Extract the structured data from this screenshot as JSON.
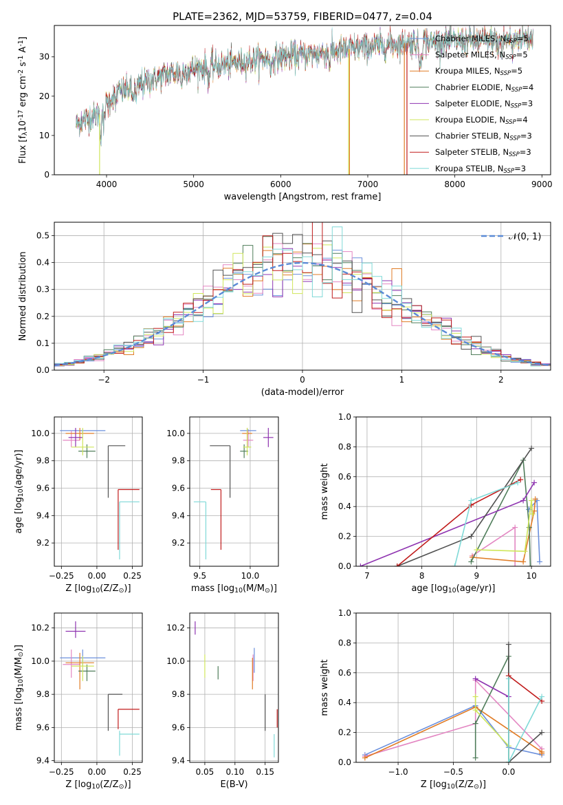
{
  "figure": {
    "title": "PLATE=2362, MJD=53759, FIBERID=0477, z=0.04"
  },
  "colors": {
    "Chabrier MILES": "#6a8fdc",
    "Salpeter MILES": "#e386c2",
    "Kroupa MILES": "#e07b24",
    "Chabrier ELODIE": "#4f7d5a",
    "Salpeter ELODIE": "#8e33b0",
    "Kroupa ELODIE": "#cfe65a",
    "Chabrier STELIB": "#505050",
    "Salpeter STELIB": "#c01a1a",
    "Kroupa STELIB": "#7fd9d7",
    "gauss": "#5b8ad6"
  },
  "chart_data": [
    {
      "id": "spectrum",
      "type": "line",
      "xlabel": "wavelength [Angstrom, rest frame]",
      "ylabel": "Flux [f$_\\lambda$10$^{-17}$ erg cm$^{-2}$ s$^{-1}$ A$^{-1}$]",
      "xlim": [
        3400,
        9100
      ],
      "ylim": [
        0,
        38
      ],
      "xticks": [
        4000,
        5000,
        6000,
        7000,
        8000,
        9000
      ],
      "yticks": [
        0,
        10,
        20,
        30
      ],
      "legend_loc": "upper right",
      "legend": [
        {
          "series": "Chabrier MILES",
          "label": "Chabrier MILES, N",
          "sub": "SSP",
          "suffix": "=5"
        },
        {
          "series": "Salpeter MILES",
          "label": "Salpeter MILES, N",
          "sub": "SSP",
          "suffix": "=5"
        },
        {
          "series": "Kroupa MILES",
          "label": "Kroupa MILES, N",
          "sub": "SSP",
          "suffix": "=5"
        },
        {
          "series": "Chabrier ELODIE",
          "label": "Chabrier ELODIE, N",
          "sub": "SSP",
          "suffix": "=4"
        },
        {
          "series": "Salpeter ELODIE",
          "label": "Salpeter ELODIE, N",
          "sub": "SSP",
          "suffix": "=3"
        },
        {
          "series": "Kroupa ELODIE",
          "label": "Kroupa ELODIE, N",
          "sub": "SSP",
          "suffix": "=4"
        },
        {
          "series": "Chabrier STELIB",
          "label": "Chabrier STELIB, N",
          "sub": "SSP",
          "suffix": "=3"
        },
        {
          "series": "Salpeter STELIB",
          "label": "Salpeter STELIB, N",
          "sub": "SSP",
          "suffix": "=3"
        },
        {
          "series": "Kroupa STELIB",
          "label": "Kroupa STELIB, N",
          "sub": "SSP",
          "suffix": "=3"
        }
      ],
      "continuum": {
        "x": [
          3650,
          3750,
          3850,
          3950,
          4000,
          4100,
          4300,
          4500,
          4700,
          5000,
          5200,
          5500,
          5800,
          6000,
          6300,
          6600,
          7000,
          7400,
          7800,
          8200,
          8600,
          8900
        ],
        "y": [
          13,
          14,
          15,
          15.5,
          18,
          21,
          22,
          24,
          25.5,
          27,
          27.5,
          28.5,
          29.5,
          30,
          30.5,
          31.5,
          32.5,
          33.5,
          34,
          34,
          34.5,
          35
        ]
      },
      "dropouts": [
        {
          "series": "Kroupa ELODIE",
          "x": 3920
        },
        {
          "series": "Kroupa ELODIE",
          "x": 6780
        },
        {
          "series": "Kroupa MILES",
          "x": 6790
        },
        {
          "series": "Kroupa MILES",
          "x": 7420
        },
        {
          "series": "Salpeter STELIB",
          "x": 7450
        }
      ]
    },
    {
      "id": "residual-histogram",
      "type": "line",
      "xlabel": "(data-model)/error",
      "ylabel": "Normed distribution",
      "xlim": [
        -2.5,
        2.5
      ],
      "ylim": [
        0,
        0.55
      ],
      "xticks": [
        -2,
        -1,
        0,
        1,
        2
      ],
      "yticks": [
        0.0,
        0.1,
        0.2,
        0.3,
        0.4,
        0.5
      ],
      "grid": true,
      "legend_loc": "upper right",
      "gauss_label": "𝒩(0, 1)",
      "bin_width": 0.1,
      "series_order": [
        "Chabrier MILES",
        "Salpeter MILES",
        "Kroupa MILES",
        "Chabrier ELODIE",
        "Salpeter ELODIE",
        "Kroupa ELODIE",
        "Chabrier STELIB",
        "Salpeter STELIB",
        "Kroupa STELIB"
      ]
    },
    {
      "id": "age-vs-Z",
      "type": "scatter",
      "xlabel": "Z [log$_{10}$(Z/Z$_\\odot$)]",
      "ylabel": "age  [log$_{10}$(age/yr)]",
      "xlim": [
        -0.3,
        0.32
      ],
      "ylim": [
        9.03,
        10.12
      ],
      "xticks": [
        -0.25,
        0.0,
        0.25
      ],
      "yticks": [
        9.2,
        9.4,
        9.6,
        9.8,
        10.0
      ],
      "grid": true,
      "points": [
        {
          "series": "Chabrier MILES",
          "x": -0.1,
          "y": 10.02,
          "xerr": [
            0.16,
            0.16
          ],
          "yerr": [
            0.03,
            0.01
          ]
        },
        {
          "series": "Salpeter MILES",
          "x": -0.18,
          "y": 9.95,
          "xerr": [
            0.06,
            0.06
          ],
          "yerr": [
            0.05,
            0.07
          ]
        },
        {
          "series": "Kroupa MILES",
          "x": -0.12,
          "y": 10.0,
          "xerr": [
            0.1,
            0.1
          ],
          "yerr": [
            0.05,
            0.04
          ]
        },
        {
          "series": "Chabrier ELODIE",
          "x": -0.07,
          "y": 9.87,
          "xerr": [
            0.06,
            0.06
          ],
          "yerr": [
            0.05,
            0.05
          ]
        },
        {
          "series": "Salpeter ELODIE",
          "x": -0.15,
          "y": 9.97,
          "xerr": [
            0.05,
            0.05
          ],
          "yerr": [
            0.07,
            0.07
          ]
        },
        {
          "series": "Kroupa ELODIE",
          "x": -0.1,
          "y": 9.9,
          "xerr": [
            0.08,
            0.08
          ],
          "yerr": [
            0.06,
            0.14
          ]
        },
        {
          "series": "Chabrier STELIB",
          "x": 0.08,
          "y": 9.91,
          "xerr": [
            0.0,
            0.12
          ],
          "yerr": [
            0.38,
            0.0
          ]
        },
        {
          "series": "Salpeter STELIB",
          "x": 0.15,
          "y": 9.59,
          "xerr": [
            0.0,
            0.15
          ],
          "yerr": [
            0.44,
            0.0
          ]
        },
        {
          "series": "Kroupa STELIB",
          "x": 0.16,
          "y": 9.5,
          "xerr": [
            0.0,
            0.14
          ],
          "yerr": [
            0.42,
            0.0
          ]
        }
      ]
    },
    {
      "id": "age-vs-mass",
      "type": "scatter",
      "xlabel": "mass [log$_{10}$(M/M$_\\odot$)]",
      "ylabel": "",
      "xlim": [
        9.4,
        10.28
      ],
      "ylim": [
        9.03,
        10.12
      ],
      "xticks": [
        9.5,
        10.0
      ],
      "yticks": [
        9.2,
        9.4,
        9.6,
        9.8,
        10.0
      ],
      "grid": true,
      "points": [
        {
          "series": "Chabrier MILES",
          "x": 9.98,
          "y": 10.02,
          "xerr": [
            0.08,
            0.08
          ],
          "yerr": [
            0.03,
            0.01
          ]
        },
        {
          "series": "Salpeter MILES",
          "x": 9.98,
          "y": 9.95,
          "xerr": [
            0.05,
            0.05
          ],
          "yerr": [
            0.05,
            0.07
          ]
        },
        {
          "series": "Kroupa MILES",
          "x": 9.97,
          "y": 10.0,
          "xerr": [
            0.05,
            0.05
          ],
          "yerr": [
            0.05,
            0.04
          ]
        },
        {
          "series": "Chabrier ELODIE",
          "x": 9.94,
          "y": 9.87,
          "xerr": [
            0.04,
            0.04
          ],
          "yerr": [
            0.05,
            0.05
          ]
        },
        {
          "series": "Salpeter ELODIE",
          "x": 10.18,
          "y": 9.97,
          "xerr": [
            0.05,
            0.05
          ],
          "yerr": [
            0.07,
            0.07
          ]
        },
        {
          "series": "Kroupa ELODIE",
          "x": 9.97,
          "y": 9.9,
          "xerr": [
            0.04,
            0.04
          ],
          "yerr": [
            0.06,
            0.14
          ]
        },
        {
          "series": "Chabrier STELIB",
          "x": 9.8,
          "y": 9.91,
          "xerr": [
            0.2,
            0.0
          ],
          "yerr": [
            0.38,
            0.0
          ]
        },
        {
          "series": "Salpeter STELIB",
          "x": 9.71,
          "y": 9.59,
          "xerr": [
            0.1,
            0.0
          ],
          "yerr": [
            0.44,
            0.0
          ]
        },
        {
          "series": "Kroupa STELIB",
          "x": 9.56,
          "y": 9.5,
          "xerr": [
            0.12,
            0.0
          ],
          "yerr": [
            0.42,
            0.0
          ]
        }
      ]
    },
    {
      "id": "massweight-vs-age",
      "type": "line",
      "xlabel": "age  [log$_{10}$(age/yr)]",
      "ylabel": "mass weight",
      "xlim": [
        6.8,
        10.35
      ],
      "ylim": [
        0,
        1.0
      ],
      "xticks": [
        7,
        8,
        9,
        10
      ],
      "yticks": [
        0.0,
        0.2,
        0.4,
        0.6,
        0.8,
        1.0
      ],
      "grid": true,
      "series": [
        {
          "name": "Chabrier MILES",
          "x": [
            9.95,
            10.1,
            10.15
          ],
          "y": [
            0.38,
            0.44,
            0.03
          ]
        },
        {
          "name": "Salpeter MILES",
          "x": [
            8.92,
            9.7,
            9.7
          ],
          "y": [
            0.07,
            0.26,
            0.0
          ]
        },
        {
          "name": "Kroupa MILES",
          "x": [
            8.92,
            9.85,
            10.05,
            10.07
          ],
          "y": [
            0.06,
            0.03,
            0.37,
            0.45
          ]
        },
        {
          "name": "Chabrier ELODIE",
          "x": [
            8.9,
            9.85,
            9.96,
            9.98
          ],
          "y": [
            0.03,
            0.71,
            0.26,
            0.0
          ]
        },
        {
          "name": "Salpeter ELODIE",
          "x": [
            6.88,
            9.85,
            10.05
          ],
          "y": [
            0.0,
            0.44,
            0.56
          ]
        },
        {
          "name": "Kroupa ELODIE",
          "x": [
            9.0,
            9.88,
            10.0,
            10.02
          ],
          "y": [
            0.11,
            0.1,
            0.44,
            0.35
          ]
        },
        {
          "name": "Chabrier STELIB",
          "x": [
            7.55,
            8.9,
            10.0
          ],
          "y": [
            0.0,
            0.2,
            0.79
          ]
        },
        {
          "name": "Salpeter STELIB",
          "x": [
            7.55,
            8.9,
            9.8
          ],
          "y": [
            0.0,
            0.41,
            0.58
          ]
        },
        {
          "name": "Kroupa STELIB",
          "x": [
            8.6,
            8.9,
            9.75
          ],
          "y": [
            0.0,
            0.44,
            0.56
          ]
        }
      ]
    },
    {
      "id": "mass-vs-Z",
      "type": "scatter",
      "xlabel": "Z [log$_{10}$(Z/Z$_\\odot$)]",
      "ylabel": "mass [log$_{10}$(M/M$_\\odot$)]",
      "xlim": [
        -0.3,
        0.32
      ],
      "ylim": [
        9.39,
        10.29
      ],
      "xticks": [
        -0.25,
        0.0,
        0.25
      ],
      "yticks": [
        9.4,
        9.6,
        9.8,
        10.0,
        10.2
      ],
      "grid": true,
      "points": [
        {
          "series": "Chabrier MILES",
          "x": -0.1,
          "y": 10.02,
          "xerr": [
            0.16,
            0.16
          ],
          "yerr": [
            0.05,
            0.05
          ]
        },
        {
          "series": "Salpeter MILES",
          "x": -0.18,
          "y": 9.98,
          "xerr": [
            0.06,
            0.06
          ],
          "yerr": [
            0.08,
            0.09
          ]
        },
        {
          "series": "Kroupa MILES",
          "x": -0.12,
          "y": 9.99,
          "xerr": [
            0.1,
            0.1
          ],
          "yerr": [
            0.16,
            0.06
          ]
        },
        {
          "series": "Chabrier ELODIE",
          "x": -0.07,
          "y": 9.94,
          "xerr": [
            0.06,
            0.06
          ],
          "yerr": [
            0.06,
            0.04
          ]
        },
        {
          "series": "Salpeter ELODIE",
          "x": -0.15,
          "y": 10.18,
          "xerr": [
            0.07,
            0.07
          ],
          "yerr": [
            0.04,
            0.06
          ]
        },
        {
          "series": "Kroupa ELODIE",
          "x": -0.1,
          "y": 9.97,
          "xerr": [
            0.08,
            0.08
          ],
          "yerr": [
            0.09,
            0.06
          ]
        },
        {
          "series": "Chabrier STELIB",
          "x": 0.08,
          "y": 9.8,
          "xerr": [
            0.0,
            0.1
          ],
          "yerr": [
            0.22,
            0.0
          ]
        },
        {
          "series": "Salpeter STELIB",
          "x": 0.15,
          "y": 9.71,
          "xerr": [
            0.0,
            0.15
          ],
          "yerr": [
            0.12,
            0.0
          ]
        },
        {
          "series": "Kroupa STELIB",
          "x": 0.16,
          "y": 9.56,
          "xerr": [
            0.0,
            0.14
          ],
          "yerr": [
            0.13,
            0.02
          ]
        }
      ]
    },
    {
      "id": "mass-vs-EBV",
      "type": "scatter",
      "xlabel": "E(B-V)",
      "ylabel": "",
      "xlim": [
        0.025,
        0.172
      ],
      "ylim": [
        9.39,
        10.29
      ],
      "xticks": [
        0.05,
        0.1,
        0.15
      ],
      "yticks": [
        9.4,
        9.6,
        9.8,
        10.0,
        10.2
      ],
      "grid": true,
      "points": [
        {
          "series": "Chabrier MILES",
          "x": 0.132,
          "y": 10.0,
          "xerr": [
            0,
            0
          ],
          "yerr": [
            0.07,
            0.08
          ]
        },
        {
          "series": "Salpeter MILES",
          "x": 0.13,
          "y": 9.98,
          "xerr": [
            0,
            0
          ],
          "yerr": [
            0.1,
            0.06
          ]
        },
        {
          "series": "Kroupa MILES",
          "x": 0.129,
          "y": 9.97,
          "xerr": [
            0,
            0
          ],
          "yerr": [
            0.14,
            0.05
          ]
        },
        {
          "series": "Chabrier ELODIE",
          "x": 0.072,
          "y": 9.94,
          "xerr": [
            0,
            0
          ],
          "yerr": [
            0.05,
            0.03
          ]
        },
        {
          "series": "Salpeter ELODIE",
          "x": 0.034,
          "y": 10.2,
          "xerr": [
            0,
            0
          ],
          "yerr": [
            0.04,
            0.04
          ]
        },
        {
          "series": "Kroupa ELODIE",
          "x": 0.05,
          "y": 9.98,
          "xerr": [
            0,
            0
          ],
          "yerr": [
            0.08,
            0.06
          ]
        },
        {
          "series": "Chabrier STELIB",
          "x": 0.15,
          "y": 9.8,
          "xerr": [
            0,
            0
          ],
          "yerr": [
            0.22,
            0.0
          ]
        },
        {
          "series": "Salpeter STELIB",
          "x": 0.17,
          "y": 9.65,
          "xerr": [
            0,
            0
          ],
          "yerr": [
            0.05,
            0.06
          ]
        },
        {
          "series": "Kroupa STELIB",
          "x": 0.165,
          "y": 9.52,
          "xerr": [
            0,
            0
          ],
          "yerr": [
            0.1,
            0.04
          ]
        }
      ]
    },
    {
      "id": "massweight-vs-Z",
      "type": "line",
      "xlabel": "Z [log$_{10}$(Z/Z$_\\odot$)]",
      "ylabel": "mass weight",
      "xlim": [
        -1.38,
        0.38
      ],
      "ylim": [
        0,
        1.0
      ],
      "xticks": [
        -1.0,
        -0.5,
        0.0
      ],
      "yticks": [
        0.0,
        0.2,
        0.4,
        0.6,
        0.8,
        1.0
      ],
      "grid": true,
      "series": [
        {
          "name": "Chabrier MILES",
          "x": [
            -1.3,
            -0.3,
            0.0,
            0.3
          ],
          "y": [
            0.05,
            0.38,
            0.1,
            0.05
          ]
        },
        {
          "name": "Salpeter MILES",
          "x": [
            -1.3,
            -0.3,
            -0.3,
            0.3
          ],
          "y": [
            0.04,
            0.26,
            0.55,
            0.09
          ]
        },
        {
          "name": "Kroupa MILES",
          "x": [
            -1.3,
            -0.3,
            0.3,
            0.3
          ],
          "y": [
            0.03,
            0.37,
            0.07,
            0.06
          ]
        },
        {
          "name": "Chabrier ELODIE",
          "x": [
            -0.3,
            -0.3,
            0.0,
            0.0
          ],
          "y": [
            0.03,
            0.26,
            0.71,
            0.0
          ]
        },
        {
          "name": "Salpeter ELODIE",
          "x": [
            -0.3,
            0.0
          ],
          "y": [
            0.56,
            0.44
          ]
        },
        {
          "name": "Kroupa ELODIE",
          "x": [
            -0.3,
            -0.3,
            0.0,
            0.0
          ],
          "y": [
            0.44,
            0.35,
            0.11,
            0.0
          ]
        },
        {
          "name": "Chabrier STELIB",
          "x": [
            0.0,
            0.0,
            0.3
          ],
          "y": [
            0.79,
            0.0,
            0.2
          ]
        },
        {
          "name": "Salpeter STELIB",
          "x": [
            0.0,
            0.3
          ],
          "y": [
            0.58,
            0.41
          ]
        },
        {
          "name": "Kroupa STELIB",
          "x": [
            0.0,
            0.0,
            0.3
          ],
          "y": [
            0.56,
            0.0,
            0.44
          ]
        }
      ]
    }
  ]
}
